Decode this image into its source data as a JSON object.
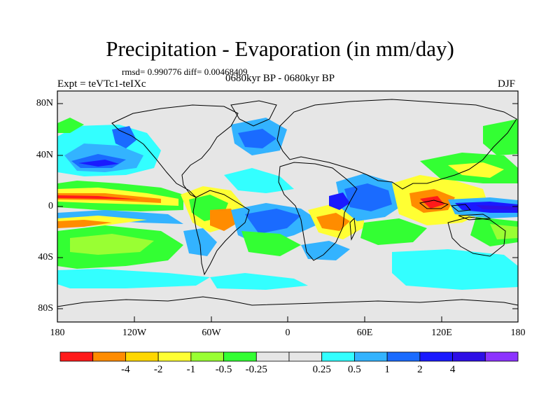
{
  "title": "Precipitation - Evaporation (in mm/day)",
  "stats": "rmsd= 0.990776  diff= 0.00468409",
  "left_label": "Expt = teVTc1-teIXc",
  "center_label": "0680kyr BP - 0680kyr BP",
  "right_label": "DJF",
  "lat_ticks": [
    "80N",
    "40N",
    "0",
    "40S",
    "80S"
  ],
  "lon_ticks": [
    "180",
    "120W",
    "60W",
    "0",
    "60E",
    "120E",
    "180"
  ],
  "colorbar": {
    "colors": [
      "#ff1a1a",
      "#ff8c00",
      "#ffd700",
      "#ffff33",
      "#99ff33",
      "#33ff33",
      "#e6e6e6",
      "#e6e6e6",
      "#33ffff",
      "#33b3ff",
      "#1a6bff",
      "#1a1aff",
      "#2e0fe6",
      "#8c33ff"
    ],
    "labels": [
      "-4",
      "-2",
      "-1",
      "-0.5",
      "-0.25",
      "0.25",
      "0.5",
      "1",
      "2",
      "4"
    ]
  },
  "colors": {
    "background": "#e6e6e6"
  }
}
